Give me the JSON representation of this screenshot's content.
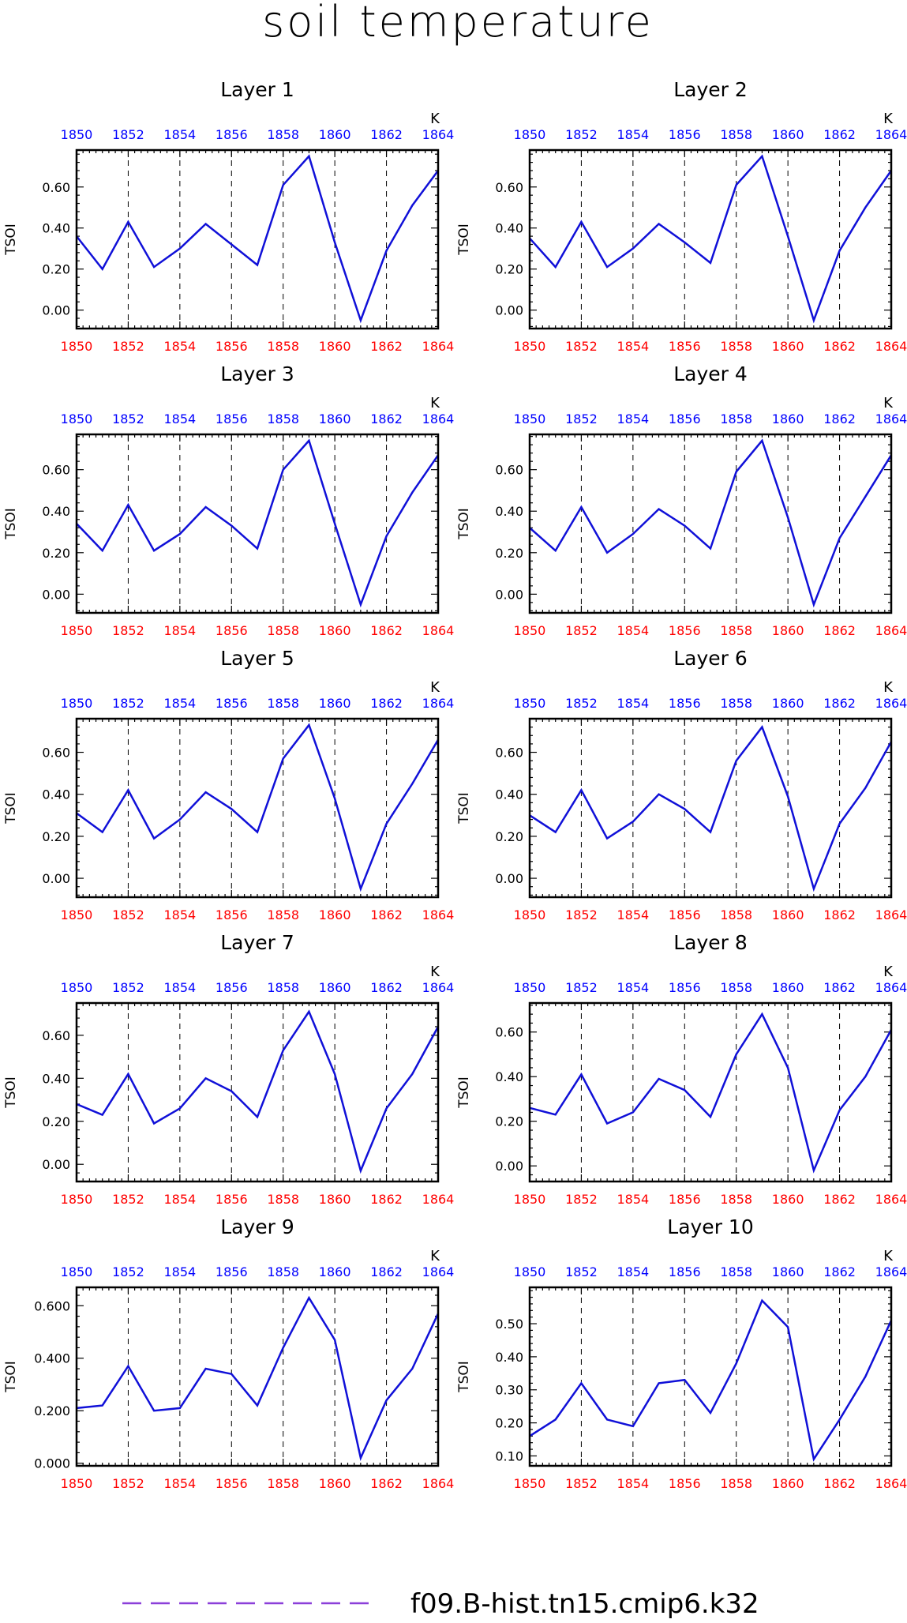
{
  "title": "soil temperature",
  "legend": {
    "label": "f09.B-hist.tn15.cmip6.k32",
    "color": "#8b3fd9"
  },
  "colors": {
    "line": "#1010d8",
    "top_ticks": "#0000ff",
    "bottom_ticks": "#ff0000",
    "axis": "#000000"
  },
  "chart_data": [
    {
      "type": "line",
      "title": "Layer 1",
      "ylabel": "TSOI",
      "units": "K",
      "x": [
        1850,
        1851,
        1852,
        1853,
        1854,
        1855,
        1856,
        1857,
        1858,
        1859,
        1860,
        1861,
        1862,
        1863,
        1864
      ],
      "xticks": [
        1850,
        1852,
        1854,
        1856,
        1858,
        1860,
        1862,
        1864
      ],
      "series": [
        {
          "values": [
            0.36,
            0.2,
            0.43,
            0.21,
            0.3,
            0.42,
            0.32,
            0.22,
            0.61,
            0.75,
            0.33,
            -0.05,
            0.29,
            0.51,
            0.68
          ]
        }
      ],
      "ylim": [
        -0.09,
        0.78
      ],
      "yticks": [
        0.0,
        0.2,
        0.4,
        0.6
      ],
      "ydecimals": 2
    },
    {
      "type": "line",
      "title": "Layer 2",
      "ylabel": "TSOI",
      "units": "K",
      "x": [
        1850,
        1851,
        1852,
        1853,
        1854,
        1855,
        1856,
        1857,
        1858,
        1859,
        1860,
        1861,
        1862,
        1863,
        1864
      ],
      "xticks": [
        1850,
        1852,
        1854,
        1856,
        1858,
        1860,
        1862,
        1864
      ],
      "series": [
        {
          "values": [
            0.35,
            0.21,
            0.43,
            0.21,
            0.3,
            0.42,
            0.33,
            0.23,
            0.61,
            0.75,
            0.36,
            -0.05,
            0.29,
            0.5,
            0.68
          ]
        }
      ],
      "ylim": [
        -0.09,
        0.78
      ],
      "yticks": [
        0.0,
        0.2,
        0.4,
        0.6
      ],
      "ydecimals": 2
    },
    {
      "type": "line",
      "title": "Layer 3",
      "ylabel": "TSOI",
      "units": "K",
      "x": [
        1850,
        1851,
        1852,
        1853,
        1854,
        1855,
        1856,
        1857,
        1858,
        1859,
        1860,
        1861,
        1862,
        1863,
        1864
      ],
      "xticks": [
        1850,
        1852,
        1854,
        1856,
        1858,
        1860,
        1862,
        1864
      ],
      "series": [
        {
          "values": [
            0.34,
            0.21,
            0.43,
            0.21,
            0.29,
            0.42,
            0.33,
            0.22,
            0.6,
            0.74,
            0.34,
            -0.05,
            0.28,
            0.49,
            0.67
          ]
        }
      ],
      "ylim": [
        -0.09,
        0.77
      ],
      "yticks": [
        0.0,
        0.2,
        0.4,
        0.6
      ],
      "ydecimals": 2
    },
    {
      "type": "line",
      "title": "Layer 4",
      "ylabel": "TSOI",
      "units": "K",
      "x": [
        1850,
        1851,
        1852,
        1853,
        1854,
        1855,
        1856,
        1857,
        1858,
        1859,
        1860,
        1861,
        1862,
        1863,
        1864
      ],
      "xticks": [
        1850,
        1852,
        1854,
        1856,
        1858,
        1860,
        1862,
        1864
      ],
      "series": [
        {
          "values": [
            0.32,
            0.21,
            0.42,
            0.2,
            0.29,
            0.41,
            0.33,
            0.22,
            0.59,
            0.74,
            0.37,
            -0.05,
            0.27,
            0.47,
            0.67
          ]
        }
      ],
      "ylim": [
        -0.09,
        0.77
      ],
      "yticks": [
        0.0,
        0.2,
        0.4,
        0.6
      ],
      "ydecimals": 2
    },
    {
      "type": "line",
      "title": "Layer 5",
      "ylabel": "TSOI",
      "units": "K",
      "x": [
        1850,
        1851,
        1852,
        1853,
        1854,
        1855,
        1856,
        1857,
        1858,
        1859,
        1860,
        1861,
        1862,
        1863,
        1864
      ],
      "xticks": [
        1850,
        1852,
        1854,
        1856,
        1858,
        1860,
        1862,
        1864
      ],
      "series": [
        {
          "values": [
            0.31,
            0.22,
            0.42,
            0.19,
            0.28,
            0.41,
            0.33,
            0.22,
            0.57,
            0.73,
            0.38,
            -0.05,
            0.26,
            0.45,
            0.66
          ]
        }
      ],
      "ylim": [
        -0.09,
        0.76
      ],
      "yticks": [
        0.0,
        0.2,
        0.4,
        0.6
      ],
      "ydecimals": 2
    },
    {
      "type": "line",
      "title": "Layer 6",
      "ylabel": "TSOI",
      "units": "K",
      "x": [
        1850,
        1851,
        1852,
        1853,
        1854,
        1855,
        1856,
        1857,
        1858,
        1859,
        1860,
        1861,
        1862,
        1863,
        1864
      ],
      "xticks": [
        1850,
        1852,
        1854,
        1856,
        1858,
        1860,
        1862,
        1864
      ],
      "series": [
        {
          "values": [
            0.3,
            0.22,
            0.42,
            0.19,
            0.27,
            0.4,
            0.33,
            0.22,
            0.56,
            0.72,
            0.39,
            -0.05,
            0.26,
            0.43,
            0.65
          ]
        }
      ],
      "ylim": [
        -0.09,
        0.76
      ],
      "yticks": [
        0.0,
        0.2,
        0.4,
        0.6
      ],
      "ydecimals": 2
    },
    {
      "type": "line",
      "title": "Layer 7",
      "ylabel": "TSOI",
      "units": "K",
      "x": [
        1850,
        1851,
        1852,
        1853,
        1854,
        1855,
        1856,
        1857,
        1858,
        1859,
        1860,
        1861,
        1862,
        1863,
        1864
      ],
      "xticks": [
        1850,
        1852,
        1854,
        1856,
        1858,
        1860,
        1862,
        1864
      ],
      "series": [
        {
          "values": [
            0.28,
            0.23,
            0.42,
            0.19,
            0.26,
            0.4,
            0.34,
            0.22,
            0.53,
            0.71,
            0.42,
            -0.03,
            0.26,
            0.42,
            0.64
          ]
        }
      ],
      "ylim": [
        -0.08,
        0.75
      ],
      "yticks": [
        0.0,
        0.2,
        0.4,
        0.6
      ],
      "ydecimals": 2
    },
    {
      "type": "line",
      "title": "Layer 8",
      "ylabel": "TSOI",
      "units": "K",
      "x": [
        1850,
        1851,
        1852,
        1853,
        1854,
        1855,
        1856,
        1857,
        1858,
        1859,
        1860,
        1861,
        1862,
        1863,
        1864
      ],
      "xticks": [
        1850,
        1852,
        1854,
        1856,
        1858,
        1860,
        1862,
        1864
      ],
      "series": [
        {
          "values": [
            0.26,
            0.23,
            0.41,
            0.19,
            0.24,
            0.39,
            0.34,
            0.22,
            0.5,
            0.68,
            0.44,
            -0.02,
            0.25,
            0.4,
            0.61
          ]
        }
      ],
      "ylim": [
        -0.07,
        0.73
      ],
      "yticks": [
        0.0,
        0.2,
        0.4,
        0.6
      ],
      "ydecimals": 2
    },
    {
      "type": "line",
      "title": "Layer 9",
      "ylabel": "TSOI",
      "units": "K",
      "x": [
        1850,
        1851,
        1852,
        1853,
        1854,
        1855,
        1856,
        1857,
        1858,
        1859,
        1860,
        1861,
        1862,
        1863,
        1864
      ],
      "xticks": [
        1850,
        1852,
        1854,
        1856,
        1858,
        1860,
        1862,
        1864
      ],
      "series": [
        {
          "values": [
            0.21,
            0.22,
            0.37,
            0.2,
            0.21,
            0.36,
            0.34,
            0.22,
            0.44,
            0.63,
            0.47,
            0.02,
            0.24,
            0.36,
            0.57
          ]
        }
      ],
      "ylim": [
        -0.01,
        0.67
      ],
      "yticks": [
        0.0,
        0.2,
        0.4,
        0.6
      ],
      "ydecimals": 3
    },
    {
      "type": "line",
      "title": "Layer 10",
      "ylabel": "TSOI",
      "units": "K",
      "x": [
        1850,
        1851,
        1852,
        1853,
        1854,
        1855,
        1856,
        1857,
        1858,
        1859,
        1860,
        1861,
        1862,
        1863,
        1864
      ],
      "xticks": [
        1850,
        1852,
        1854,
        1856,
        1858,
        1860,
        1862,
        1864
      ],
      "series": [
        {
          "values": [
            0.16,
            0.21,
            0.32,
            0.21,
            0.19,
            0.32,
            0.33,
            0.23,
            0.38,
            0.57,
            0.49,
            0.09,
            0.21,
            0.34,
            0.51
          ]
        }
      ],
      "ylim": [
        0.07,
        0.61
      ],
      "yticks": [
        0.1,
        0.2,
        0.3,
        0.4,
        0.5
      ],
      "ydecimals": 2
    }
  ]
}
